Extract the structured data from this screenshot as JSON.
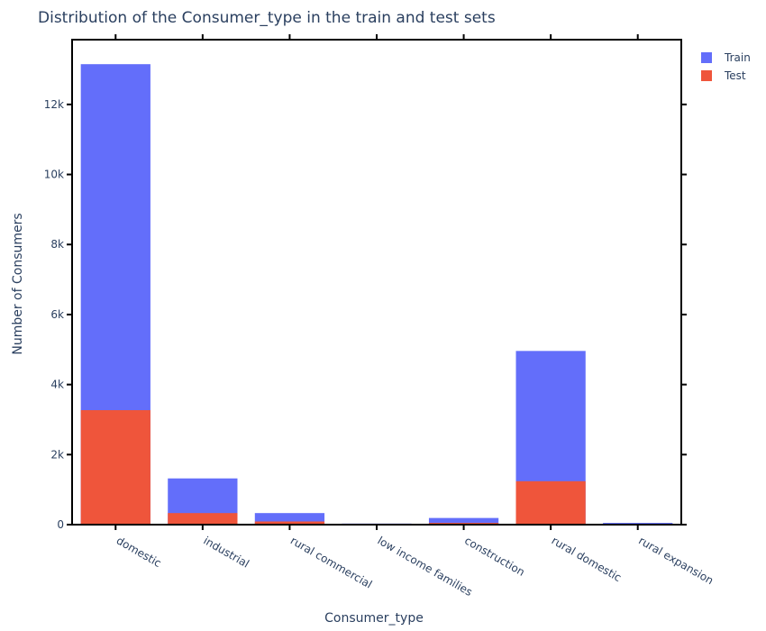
{
  "chart_data": {
    "type": "bar",
    "barmode": "overlay",
    "title": "Distribution of the Consumer_type in the train and test sets",
    "xlabel": "Consumer_type",
    "ylabel": "Number of Consumers",
    "categories": [
      "domestic",
      "industrial",
      "rural commercial",
      "low income families",
      "construction",
      "rural domestic",
      "rural expansion"
    ],
    "series": [
      {
        "name": "Train",
        "color": "#636efa",
        "values": [
          13150,
          1320,
          330,
          30,
          190,
          4960,
          50
        ]
      },
      {
        "name": "Test",
        "color": "#ef553b",
        "values": [
          3270,
          330,
          90,
          10,
          50,
          1240,
          15
        ]
      }
    ],
    "ylim": [
      0,
      13850
    ],
    "yticks": [
      0,
      2000,
      4000,
      6000,
      8000,
      10000,
      12000
    ],
    "ytick_labels": [
      "0",
      "2k",
      "4k",
      "6k",
      "8k",
      "10k",
      "12k"
    ],
    "grid": false,
    "legend_position": "top-right"
  }
}
